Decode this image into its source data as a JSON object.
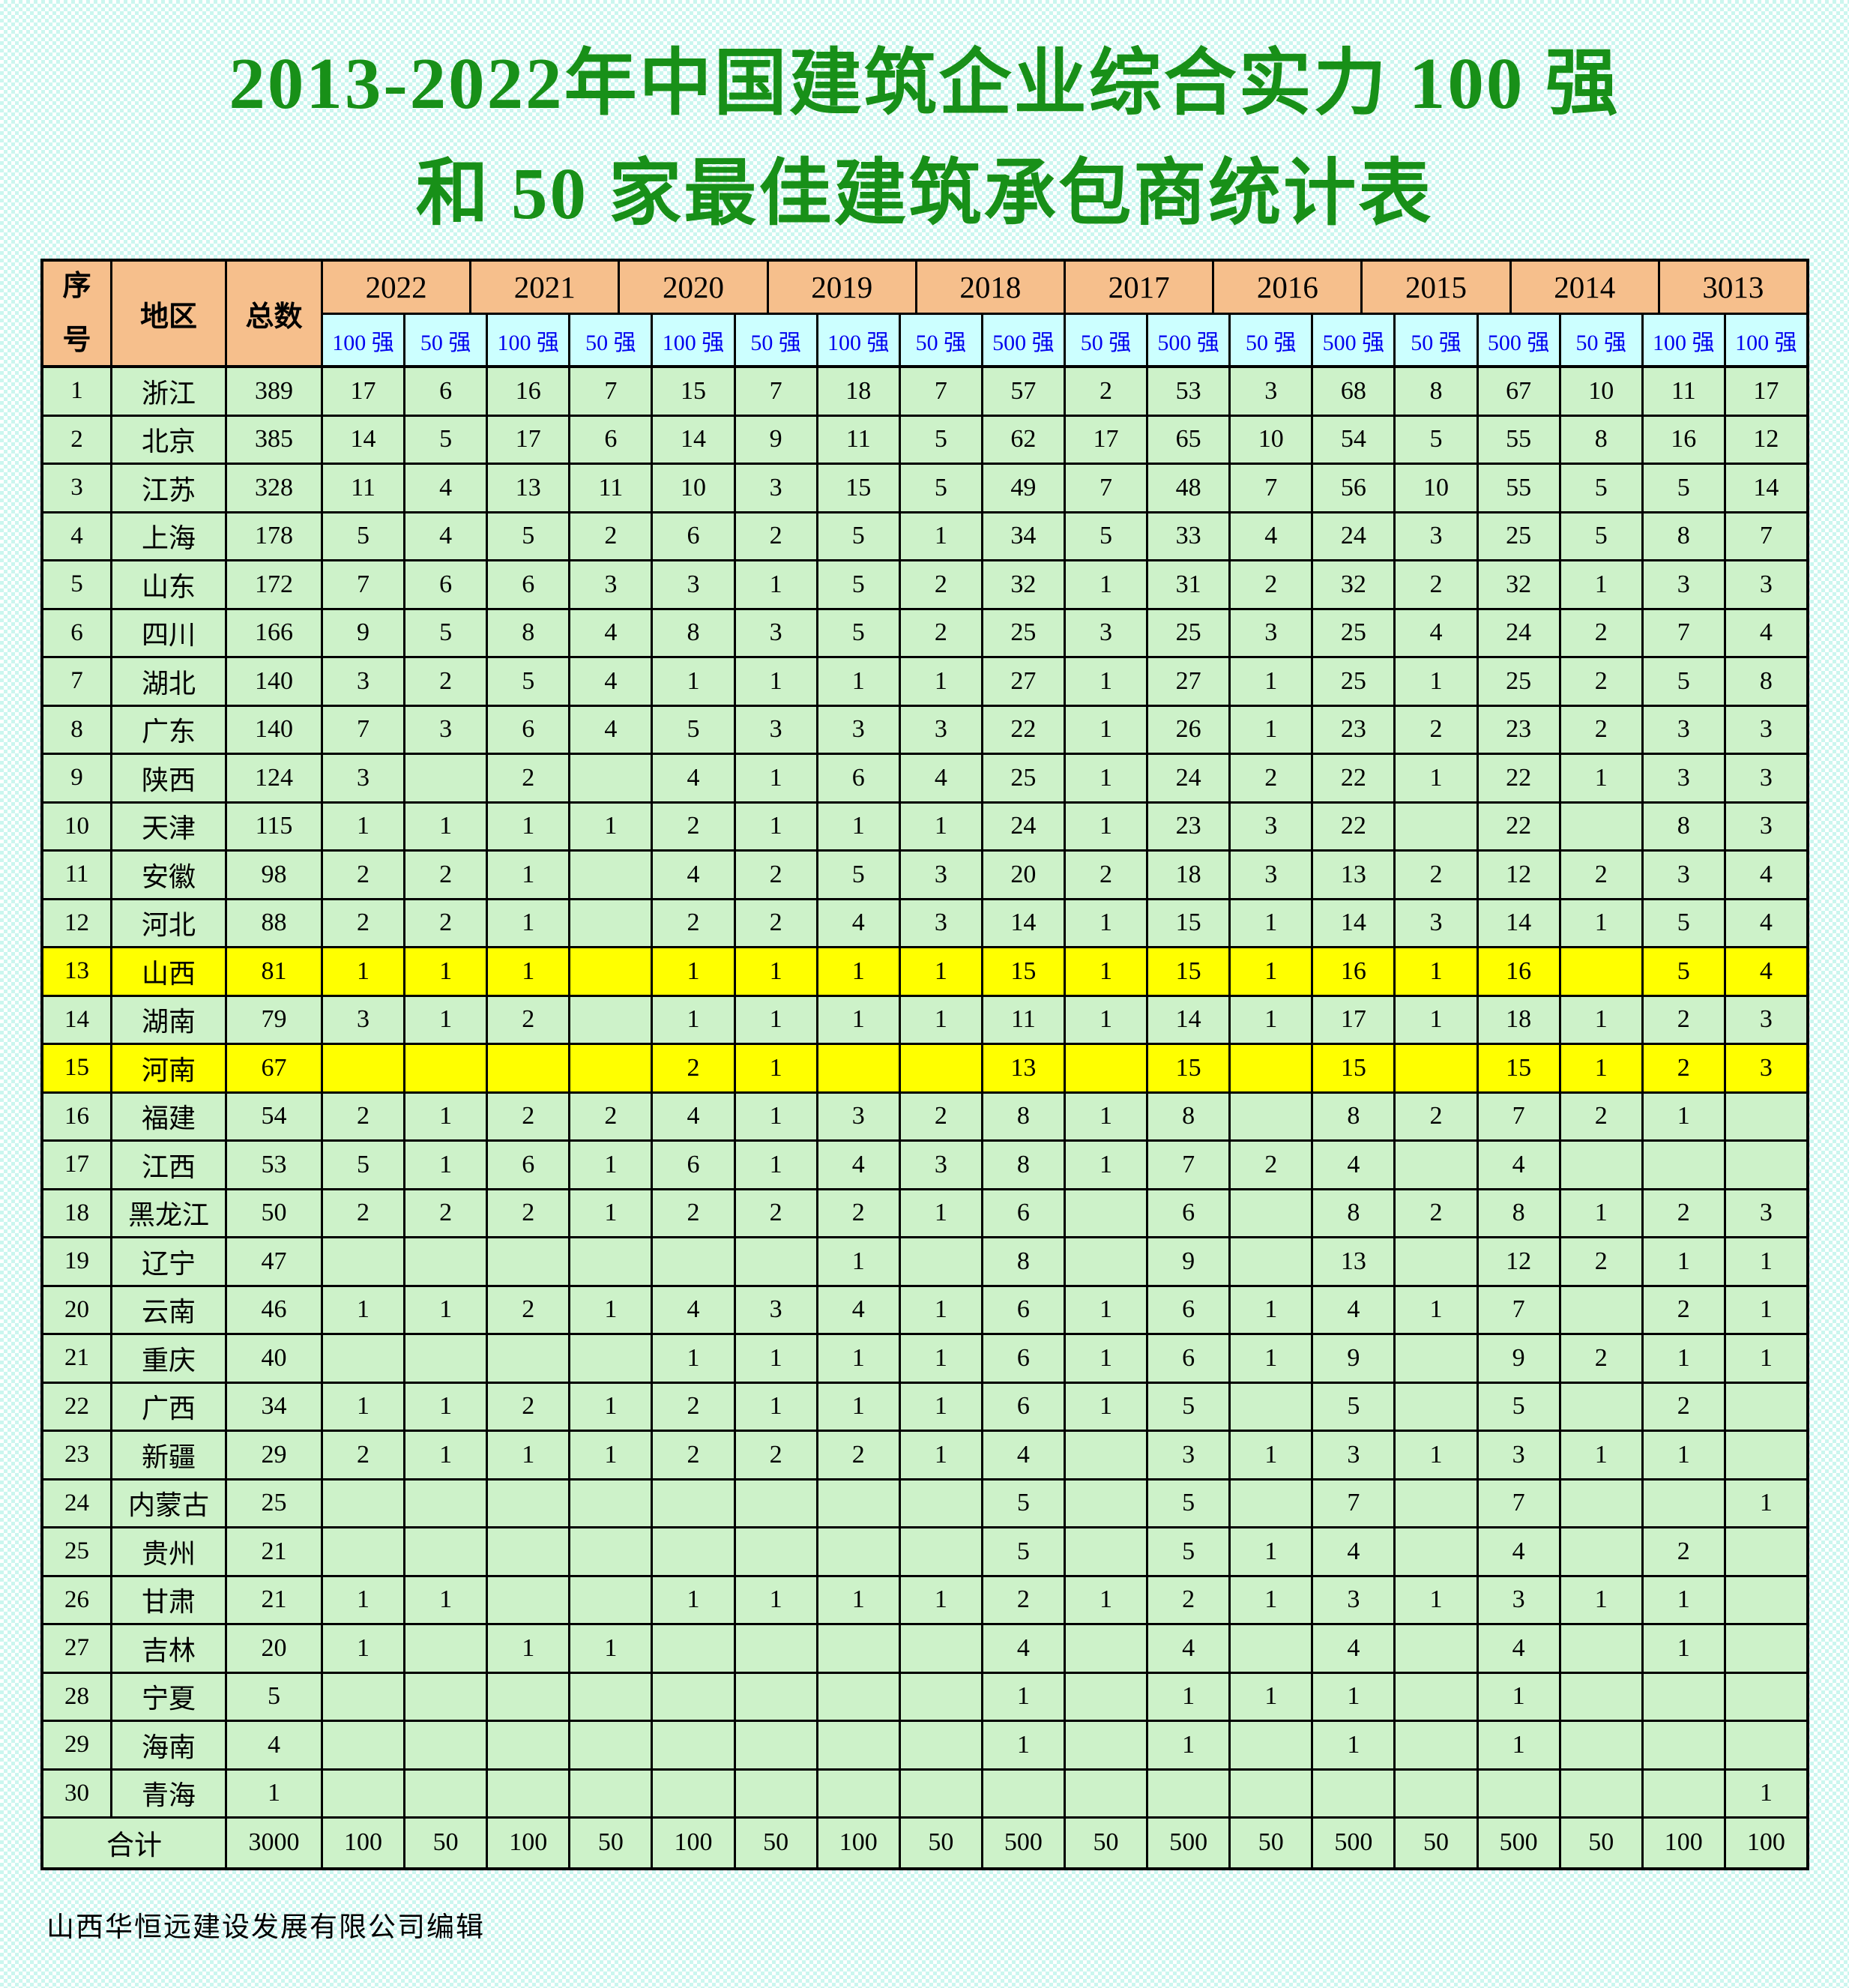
{
  "title": {
    "line1": "2013-2022年中国建筑企业综合实力 100 强",
    "line2": "和 50 家最佳建筑承包商统计表"
  },
  "colors": {
    "title_green": "#189018",
    "header_orange": "#f6bf8c",
    "subheader_cyan": "#ccffff",
    "subheader_text_blue": "#0000f0",
    "cell_green": "#cdf2c9",
    "highlight_yellow": "#ffff00",
    "background_check_cyan": "#cbf6ef",
    "border_black": "#000000"
  },
  "table": {
    "corner_headers": {
      "col_no": "序号",
      "col_region": "地区",
      "col_total": "总数"
    },
    "years": [
      "2022",
      "2021",
      "2020",
      "2019",
      "2018",
      "2017",
      "2016",
      "2015",
      "2014",
      "3013"
    ],
    "sub_headers": [
      "100 强",
      "50 强",
      "100 强",
      "50 强",
      "100 强",
      "50 强",
      "100 强",
      "50 强",
      "500 强",
      "50 强",
      "500 强",
      "50 强",
      "500 强",
      "50 强",
      "500 强",
      "50 强",
      "100 强",
      "100 强"
    ],
    "rows": [
      {
        "no": "1",
        "region": "浙江",
        "total": "389",
        "highlight": false,
        "values": [
          "17",
          "6",
          "16",
          "7",
          "15",
          "7",
          "18",
          "7",
          "57",
          "2",
          "53",
          "3",
          "68",
          "8",
          "67",
          "10",
          "11",
          "17"
        ]
      },
      {
        "no": "2",
        "region": "北京",
        "total": "385",
        "highlight": false,
        "values": [
          "14",
          "5",
          "17",
          "6",
          "14",
          "9",
          "11",
          "5",
          "62",
          "17",
          "65",
          "10",
          "54",
          "5",
          "55",
          "8",
          "16",
          "12"
        ]
      },
      {
        "no": "3",
        "region": "江苏",
        "total": "328",
        "highlight": false,
        "values": [
          "11",
          "4",
          "13",
          "11",
          "10",
          "3",
          "15",
          "5",
          "49",
          "7",
          "48",
          "7",
          "56",
          "10",
          "55",
          "5",
          "5",
          "14"
        ]
      },
      {
        "no": "4",
        "region": "上海",
        "total": "178",
        "highlight": false,
        "values": [
          "5",
          "4",
          "5",
          "2",
          "6",
          "2",
          "5",
          "1",
          "34",
          "5",
          "33",
          "4",
          "24",
          "3",
          "25",
          "5",
          "8",
          "7"
        ]
      },
      {
        "no": "5",
        "region": "山东",
        "total": "172",
        "highlight": false,
        "values": [
          "7",
          "6",
          "6",
          "3",
          "3",
          "1",
          "5",
          "2",
          "32",
          "1",
          "31",
          "2",
          "32",
          "2",
          "32",
          "1",
          "3",
          "3"
        ]
      },
      {
        "no": "6",
        "region": "四川",
        "total": "166",
        "highlight": false,
        "values": [
          "9",
          "5",
          "8",
          "4",
          "8",
          "3",
          "5",
          "2",
          "25",
          "3",
          "25",
          "3",
          "25",
          "4",
          "24",
          "2",
          "7",
          "4"
        ]
      },
      {
        "no": "7",
        "region": "湖北",
        "total": "140",
        "highlight": false,
        "values": [
          "3",
          "2",
          "5",
          "4",
          "1",
          "1",
          "1",
          "1",
          "27",
          "1",
          "27",
          "1",
          "25",
          "1",
          "25",
          "2",
          "5",
          "8"
        ]
      },
      {
        "no": "8",
        "region": "广东",
        "total": "140",
        "highlight": false,
        "values": [
          "7",
          "3",
          "6",
          "4",
          "5",
          "3",
          "3",
          "3",
          "22",
          "1",
          "26",
          "1",
          "23",
          "2",
          "23",
          "2",
          "3",
          "3"
        ]
      },
      {
        "no": "9",
        "region": "陕西",
        "total": "124",
        "highlight": false,
        "values": [
          "3",
          "",
          "2",
          "",
          "4",
          "1",
          "6",
          "4",
          "25",
          "1",
          "24",
          "2",
          "22",
          "1",
          "22",
          "1",
          "3",
          "3"
        ]
      },
      {
        "no": "10",
        "region": "天津",
        "total": "115",
        "highlight": false,
        "values": [
          "1",
          "1",
          "1",
          "1",
          "2",
          "1",
          "1",
          "1",
          "24",
          "1",
          "23",
          "3",
          "22",
          "",
          "22",
          "",
          "8",
          "3"
        ]
      },
      {
        "no": "11",
        "region": "安徽",
        "total": "98",
        "highlight": false,
        "values": [
          "2",
          "2",
          "1",
          "",
          "4",
          "2",
          "5",
          "3",
          "20",
          "2",
          "18",
          "3",
          "13",
          "2",
          "12",
          "2",
          "3",
          "4"
        ]
      },
      {
        "no": "12",
        "region": "河北",
        "total": "88",
        "highlight": false,
        "values": [
          "2",
          "2",
          "1",
          "",
          "2",
          "2",
          "4",
          "3",
          "14",
          "1",
          "15",
          "1",
          "14",
          "3",
          "14",
          "1",
          "5",
          "4"
        ]
      },
      {
        "no": "13",
        "region": "山西",
        "total": "81",
        "highlight": true,
        "values": [
          "1",
          "1",
          "1",
          "",
          "1",
          "1",
          "1",
          "1",
          "15",
          "1",
          "15",
          "1",
          "16",
          "1",
          "16",
          "",
          "5",
          "4"
        ]
      },
      {
        "no": "14",
        "region": "湖南",
        "total": "79",
        "highlight": false,
        "values": [
          "3",
          "1",
          "2",
          "",
          "1",
          "1",
          "1",
          "1",
          "11",
          "1",
          "14",
          "1",
          "17",
          "1",
          "18",
          "1",
          "2",
          "3"
        ]
      },
      {
        "no": "15",
        "region": "河南",
        "total": "67",
        "highlight": true,
        "values": [
          "",
          "",
          "",
          "",
          "2",
          "1",
          "",
          "",
          "13",
          "",
          "15",
          "",
          "15",
          "",
          "15",
          "1",
          "2",
          "3"
        ]
      },
      {
        "no": "16",
        "region": "福建",
        "total": "54",
        "highlight": false,
        "values": [
          "2",
          "1",
          "2",
          "2",
          "4",
          "1",
          "3",
          "2",
          "8",
          "1",
          "8",
          "",
          "8",
          "2",
          "7",
          "2",
          "1",
          ""
        ]
      },
      {
        "no": "17",
        "region": "江西",
        "total": "53",
        "highlight": false,
        "values": [
          "5",
          "1",
          "6",
          "1",
          "6",
          "1",
          "4",
          "3",
          "8",
          "1",
          "7",
          "2",
          "4",
          "",
          "4",
          "",
          "",
          ""
        ]
      },
      {
        "no": "18",
        "region": "黑龙江",
        "total": "50",
        "highlight": false,
        "values": [
          "2",
          "2",
          "2",
          "1",
          "2",
          "2",
          "2",
          "1",
          "6",
          "",
          "6",
          "",
          "8",
          "2",
          "8",
          "1",
          "2",
          "3"
        ]
      },
      {
        "no": "19",
        "region": "辽宁",
        "total": "47",
        "highlight": false,
        "values": [
          "",
          "",
          "",
          "",
          "",
          "",
          "1",
          "",
          "8",
          "",
          "9",
          "",
          "13",
          "",
          "12",
          "2",
          "1",
          "1"
        ]
      },
      {
        "no": "20",
        "region": "云南",
        "total": "46",
        "highlight": false,
        "values": [
          "1",
          "1",
          "2",
          "1",
          "4",
          "3",
          "4",
          "1",
          "6",
          "1",
          "6",
          "1",
          "4",
          "1",
          "7",
          "",
          "2",
          "1"
        ]
      },
      {
        "no": "21",
        "region": "重庆",
        "total": "40",
        "highlight": false,
        "values": [
          "",
          "",
          "",
          "",
          "1",
          "1",
          "1",
          "1",
          "6",
          "1",
          "6",
          "1",
          "9",
          "",
          "9",
          "2",
          "1",
          "1"
        ]
      },
      {
        "no": "22",
        "region": "广西",
        "total": "34",
        "highlight": false,
        "values": [
          "1",
          "1",
          "2",
          "1",
          "2",
          "1",
          "1",
          "1",
          "6",
          "1",
          "5",
          "",
          "5",
          "",
          "5",
          "",
          "2",
          ""
        ]
      },
      {
        "no": "23",
        "region": "新疆",
        "total": "29",
        "highlight": false,
        "values": [
          "2",
          "1",
          "1",
          "1",
          "2",
          "2",
          "2",
          "1",
          "4",
          "",
          "3",
          "1",
          "3",
          "1",
          "3",
          "1",
          "1",
          ""
        ]
      },
      {
        "no": "24",
        "region": "内蒙古",
        "total": "25",
        "highlight": false,
        "values": [
          "",
          "",
          "",
          "",
          "",
          "",
          "",
          "",
          "5",
          "",
          "5",
          "",
          "7",
          "",
          "7",
          "",
          "",
          "1"
        ]
      },
      {
        "no": "25",
        "region": "贵州",
        "total": "21",
        "highlight": false,
        "values": [
          "",
          "",
          "",
          "",
          "",
          "",
          "",
          "",
          "5",
          "",
          "5",
          "1",
          "4",
          "",
          "4",
          "",
          "2",
          ""
        ]
      },
      {
        "no": "26",
        "region": "甘肃",
        "total": "21",
        "highlight": false,
        "values": [
          "1",
          "1",
          "",
          "",
          "1",
          "1",
          "1",
          "1",
          "2",
          "1",
          "2",
          "1",
          "3",
          "1",
          "3",
          "1",
          "1",
          ""
        ]
      },
      {
        "no": "27",
        "region": "吉林",
        "total": "20",
        "highlight": false,
        "values": [
          "1",
          "",
          "1",
          "1",
          "",
          "",
          "",
          "",
          "4",
          "",
          "4",
          "",
          "4",
          "",
          "4",
          "",
          "1",
          ""
        ]
      },
      {
        "no": "28",
        "region": "宁夏",
        "total": "5",
        "highlight": false,
        "values": [
          "",
          "",
          "",
          "",
          "",
          "",
          "",
          "",
          "1",
          "",
          "1",
          "1",
          "1",
          "",
          "1",
          "",
          "",
          ""
        ]
      },
      {
        "no": "29",
        "region": "海南",
        "total": "4",
        "highlight": false,
        "values": [
          "",
          "",
          "",
          "",
          "",
          "",
          "",
          "",
          "1",
          "",
          "1",
          "",
          "1",
          "",
          "1",
          "",
          "",
          ""
        ]
      },
      {
        "no": "30",
        "region": "青海",
        "total": "1",
        "highlight": false,
        "values": [
          "",
          "",
          "",
          "",
          "",
          "",
          "",
          "",
          "",
          "",
          "",
          "",
          "",
          "",
          "",
          "",
          "",
          "1"
        ]
      }
    ],
    "total_row": {
      "label": "合计",
      "total": "3000",
      "values": [
        "100",
        "50",
        "100",
        "50",
        "100",
        "50",
        "100",
        "50",
        "500",
        "50",
        "500",
        "50",
        "500",
        "50",
        "500",
        "50",
        "100",
        "100"
      ]
    }
  },
  "footer": "山西华恒远建设发展有限公司编辑"
}
